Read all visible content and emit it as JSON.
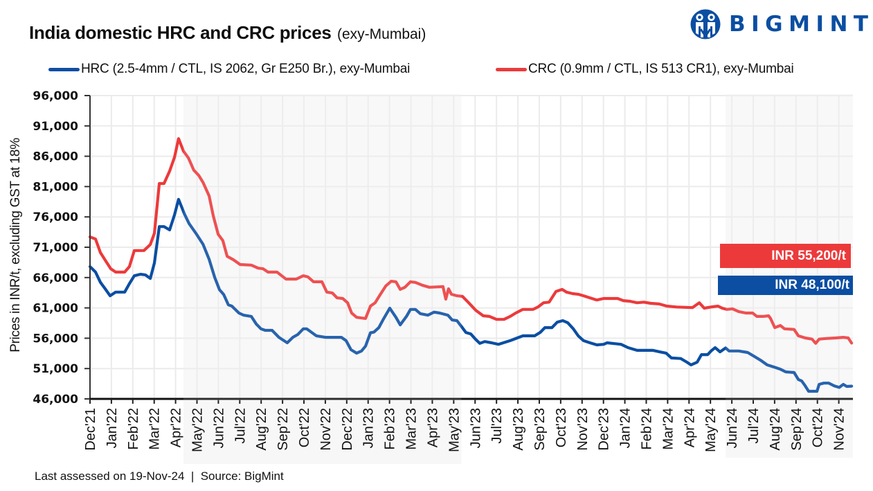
{
  "header": {
    "title_bold": "India domestic HRC and CRC prices",
    "title_suffix": "(exy-Mumbai)"
  },
  "logo": {
    "text": "BIGMINT",
    "icon": "bigmint-logo-icon",
    "color": "#0b4ea2"
  },
  "legend": [
    {
      "label": "HRC (2.5-4mm / CTL, IS 2062, Gr E250 Br.), exy-Mumbai",
      "color": "#0b4ea2"
    },
    {
      "label": "CRC (0.9mm / CTL, IS 513 CR1), exy-Mumbai",
      "color": "#ec3a3b"
    }
  ],
  "footer": {
    "text": "Last assessed on 19-Nov-24  |  Source: BigMint"
  },
  "chart_data": {
    "type": "line",
    "title": "India domestic HRC and CRC prices (exy-Mumbai)",
    "xlabel": "",
    "ylabel": "Prices in INR/t, excluding GST at 18%",
    "x_unit": "months since start of Dec 2021",
    "xlim": [
      0,
      35.66
    ],
    "ylim": [
      46000,
      96000
    ],
    "grid": true,
    "legend_position": "top",
    "y_tick_values": [
      46000,
      51000,
      56000,
      61000,
      66000,
      71000,
      76000,
      81000,
      86000,
      91000,
      96000
    ],
    "y_tick_labels": [
      "46,000",
      "51,000",
      "56,000",
      "61,000",
      "66,000",
      "71,000",
      "76,000",
      "81,000",
      "86,000",
      "91,000",
      "96,000"
    ],
    "x_tick_labels": [
      "Dec'21",
      "Jan'22",
      "Feb'22",
      "Mar'22",
      "Apr'22",
      "May'22",
      "Jun'22",
      "Jul'22",
      "Aug'22",
      "Sep'22",
      "Oct'22",
      "Nov'22",
      "Dec'22",
      "Jan'23",
      "Feb'23",
      "Mar'23",
      "Apr'23",
      "May'23",
      "Jun'23",
      "Jul'23",
      "Aug'23",
      "Sep'23",
      "Oct'23",
      "Nov'23",
      "Dec'23",
      "Jan'24",
      "Feb'24",
      "Mar'24",
      "Apr'24",
      "May'24",
      "Jun'24",
      "Jul'24",
      "Aug'24",
      "Sep'24",
      "Oct'24",
      "Nov'24"
    ],
    "shaded_periods": [
      [
        4.37,
        17.36
      ],
      [
        29.71,
        35.66
      ]
    ],
    "series": [
      {
        "name": "HRC (2.5-4mm / CTL, IS 2062, Gr E250 Br.), exy-Mumbai",
        "color": "#0b4ea2",
        "last_value_label": "INR 48,100/t",
        "last_value": 48100,
        "points": [
          [
            0,
            67800
          ],
          [
            0.26,
            66900
          ],
          [
            0.49,
            65200
          ],
          [
            0.71,
            64150
          ],
          [
            0.94,
            63000
          ],
          [
            1.2,
            63600
          ],
          [
            1.62,
            63600
          ],
          [
            1.84,
            65000
          ],
          [
            2.07,
            66300
          ],
          [
            2.36,
            66550
          ],
          [
            2.59,
            66450
          ],
          [
            2.82,
            65850
          ],
          [
            3.01,
            68400
          ],
          [
            3.24,
            74400
          ],
          [
            3.46,
            74400
          ],
          [
            3.72,
            73850
          ],
          [
            3.95,
            76350
          ],
          [
            4.14,
            78900
          ],
          [
            4.43,
            76350
          ],
          [
            4.63,
            74900
          ],
          [
            4.95,
            73300
          ],
          [
            5.28,
            71500
          ],
          [
            5.57,
            69000
          ],
          [
            5.83,
            66000
          ],
          [
            6.05,
            64000
          ],
          [
            6.25,
            63200
          ],
          [
            6.47,
            61500
          ],
          [
            6.63,
            61300
          ],
          [
            6.96,
            60150
          ],
          [
            7.18,
            59800
          ],
          [
            7.54,
            59600
          ],
          [
            7.77,
            58350
          ],
          [
            7.99,
            57550
          ],
          [
            8.19,
            57300
          ],
          [
            8.51,
            57300
          ],
          [
            8.83,
            56150
          ],
          [
            9.22,
            55250
          ],
          [
            9.48,
            56150
          ],
          [
            9.71,
            56600
          ],
          [
            9.97,
            57550
          ],
          [
            10.13,
            57550
          ],
          [
            10.58,
            56400
          ],
          [
            11,
            56150
          ],
          [
            11.75,
            56150
          ],
          [
            11.97,
            55600
          ],
          [
            12.2,
            54100
          ],
          [
            12.46,
            53550
          ],
          [
            12.69,
            53900
          ],
          [
            12.88,
            54700
          ],
          [
            13.11,
            56900
          ],
          [
            13.27,
            57000
          ],
          [
            13.5,
            57750
          ],
          [
            13.69,
            59000
          ],
          [
            14.01,
            60950
          ],
          [
            14.3,
            59450
          ],
          [
            14.5,
            58200
          ],
          [
            14.79,
            59600
          ],
          [
            14.98,
            60750
          ],
          [
            15.21,
            60750
          ],
          [
            15.44,
            60050
          ],
          [
            15.79,
            59800
          ],
          [
            16.08,
            60300
          ],
          [
            16.34,
            60150
          ],
          [
            16.73,
            59800
          ],
          [
            16.93,
            59000
          ],
          [
            17.15,
            58900
          ],
          [
            17.38,
            57850
          ],
          [
            17.57,
            56950
          ],
          [
            17.8,
            56700
          ],
          [
            18.03,
            55800
          ],
          [
            18.22,
            55150
          ],
          [
            18.45,
            55450
          ],
          [
            18.77,
            55250
          ],
          [
            19.09,
            55000
          ],
          [
            19.32,
            55250
          ],
          [
            19.64,
            55600
          ],
          [
            19.97,
            56050
          ],
          [
            20.23,
            56400
          ],
          [
            20.78,
            56400
          ],
          [
            21.04,
            56950
          ],
          [
            21.26,
            57750
          ],
          [
            21.59,
            57750
          ],
          [
            21.84,
            58650
          ],
          [
            22.1,
            58900
          ],
          [
            22.33,
            58550
          ],
          [
            22.59,
            57550
          ],
          [
            22.82,
            56400
          ],
          [
            23.07,
            55600
          ],
          [
            23.37,
            55250
          ],
          [
            23.69,
            54900
          ],
          [
            24.01,
            55000
          ],
          [
            24.17,
            55250
          ],
          [
            24.82,
            55000
          ],
          [
            25.15,
            54450
          ],
          [
            25.57,
            54000
          ],
          [
            26.31,
            54000
          ],
          [
            26.63,
            53750
          ],
          [
            26.93,
            53550
          ],
          [
            27.18,
            52750
          ],
          [
            27.61,
            52650
          ],
          [
            27.9,
            52050
          ],
          [
            28.09,
            51600
          ],
          [
            28.38,
            52050
          ],
          [
            28.58,
            53300
          ],
          [
            28.87,
            53300
          ],
          [
            29.03,
            53900
          ],
          [
            29.22,
            54450
          ],
          [
            29.45,
            53750
          ],
          [
            29.71,
            54400
          ],
          [
            29.87,
            53900
          ],
          [
            30.32,
            53900
          ],
          [
            30.74,
            53650
          ],
          [
            31.07,
            52950
          ],
          [
            31.33,
            52400
          ],
          [
            31.65,
            51600
          ],
          [
            31.97,
            51250
          ],
          [
            32.27,
            50900
          ],
          [
            32.52,
            50450
          ],
          [
            32.91,
            50350
          ],
          [
            33.11,
            49200
          ],
          [
            33.27,
            48950
          ],
          [
            33.43,
            48150
          ],
          [
            33.59,
            47250
          ],
          [
            33.98,
            47250
          ],
          [
            34.08,
            48400
          ],
          [
            34.3,
            48600
          ],
          [
            34.53,
            48600
          ],
          [
            34.79,
            48150
          ],
          [
            35.02,
            47900
          ],
          [
            35.21,
            48400
          ],
          [
            35.37,
            48050
          ],
          [
            35.6,
            48100
          ]
        ]
      },
      {
        "name": "CRC (0.9mm / CTL, IS 513 CR1), exy-Mumbai",
        "color": "#ec3a3b",
        "last_value_label": "INR 55,200/t",
        "last_value": 55200,
        "points": [
          [
            0,
            72700
          ],
          [
            0.26,
            72350
          ],
          [
            0.49,
            70100
          ],
          [
            0.74,
            68700
          ],
          [
            0.97,
            67450
          ],
          [
            1.2,
            66900
          ],
          [
            1.62,
            66900
          ],
          [
            1.84,
            67800
          ],
          [
            2.07,
            70450
          ],
          [
            2.52,
            70450
          ],
          [
            2.82,
            71450
          ],
          [
            3.01,
            73300
          ],
          [
            3.24,
            81500
          ],
          [
            3.46,
            81500
          ],
          [
            3.72,
            83550
          ],
          [
            3.95,
            85850
          ],
          [
            4.14,
            88900
          ],
          [
            4.37,
            86850
          ],
          [
            4.6,
            85700
          ],
          [
            4.85,
            83700
          ],
          [
            5.08,
            82850
          ],
          [
            5.28,
            81700
          ],
          [
            5.57,
            79450
          ],
          [
            5.76,
            76200
          ],
          [
            5.99,
            73150
          ],
          [
            6.21,
            72100
          ],
          [
            6.41,
            69500
          ],
          [
            6.7,
            68950
          ],
          [
            7.02,
            68150
          ],
          [
            7.54,
            68050
          ],
          [
            7.86,
            67550
          ],
          [
            8.09,
            67450
          ],
          [
            8.32,
            66900
          ],
          [
            8.74,
            66900
          ],
          [
            9.16,
            65750
          ],
          [
            9.64,
            65750
          ],
          [
            9.97,
            66300
          ],
          [
            10.19,
            66100
          ],
          [
            10.45,
            65300
          ],
          [
            10.84,
            65300
          ],
          [
            11.07,
            63600
          ],
          [
            11.33,
            63450
          ],
          [
            11.55,
            62650
          ],
          [
            11.81,
            62550
          ],
          [
            12.04,
            61850
          ],
          [
            12.23,
            60150
          ],
          [
            12.46,
            59450
          ],
          [
            12.88,
            59250
          ],
          [
            13.11,
            61300
          ],
          [
            13.33,
            61850
          ],
          [
            13.53,
            63000
          ],
          [
            13.82,
            64600
          ],
          [
            14.08,
            65400
          ],
          [
            14.3,
            65300
          ],
          [
            14.5,
            64050
          ],
          [
            14.72,
            64400
          ],
          [
            14.98,
            65300
          ],
          [
            15.21,
            65200
          ],
          [
            15.53,
            64750
          ],
          [
            15.86,
            64400
          ],
          [
            16.5,
            64500
          ],
          [
            16.63,
            62450
          ],
          [
            16.76,
            64150
          ],
          [
            16.89,
            63250
          ],
          [
            17.15,
            63000
          ],
          [
            17.41,
            62900
          ],
          [
            17.7,
            61850
          ],
          [
            18.03,
            60600
          ],
          [
            18.38,
            59700
          ],
          [
            18.67,
            59600
          ],
          [
            19,
            59100
          ],
          [
            19.35,
            59100
          ],
          [
            19.64,
            59600
          ],
          [
            19.9,
            60150
          ],
          [
            20.23,
            60750
          ],
          [
            20.71,
            60750
          ],
          [
            20.94,
            61150
          ],
          [
            21.2,
            61850
          ],
          [
            21.46,
            61950
          ],
          [
            21.78,
            63700
          ],
          [
            22.07,
            64050
          ],
          [
            22.27,
            63600
          ],
          [
            22.56,
            63350
          ],
          [
            22.82,
            63250
          ],
          [
            23.07,
            63000
          ],
          [
            23.37,
            62650
          ],
          [
            23.69,
            62300
          ],
          [
            24.01,
            62550
          ],
          [
            24.66,
            62550
          ],
          [
            24.92,
            62200
          ],
          [
            25.24,
            62100
          ],
          [
            25.57,
            61850
          ],
          [
            25.89,
            61950
          ],
          [
            26.21,
            61750
          ],
          [
            26.6,
            61650
          ],
          [
            26.96,
            61300
          ],
          [
            27.41,
            61150
          ],
          [
            28.16,
            61050
          ],
          [
            28.48,
            61850
          ],
          [
            28.71,
            60950
          ],
          [
            29.03,
            61150
          ],
          [
            29.35,
            61300
          ],
          [
            29.55,
            60950
          ],
          [
            29.77,
            60750
          ],
          [
            30.03,
            60850
          ],
          [
            30.32,
            60400
          ],
          [
            30.65,
            60150
          ],
          [
            30.97,
            60150
          ],
          [
            31.17,
            59600
          ],
          [
            31.46,
            59600
          ],
          [
            31.72,
            59700
          ],
          [
            31.81,
            59250
          ],
          [
            32.01,
            57750
          ],
          [
            32.27,
            58100
          ],
          [
            32.46,
            57550
          ],
          [
            32.91,
            57450
          ],
          [
            33.11,
            56400
          ],
          [
            33.43,
            56050
          ],
          [
            33.75,
            55850
          ],
          [
            33.92,
            55150
          ],
          [
            34.08,
            55850
          ],
          [
            34.4,
            55950
          ],
          [
            34.85,
            56050
          ],
          [
            35.21,
            56150
          ],
          [
            35.44,
            56050
          ],
          [
            35.6,
            55200
          ]
        ]
      }
    ]
  }
}
